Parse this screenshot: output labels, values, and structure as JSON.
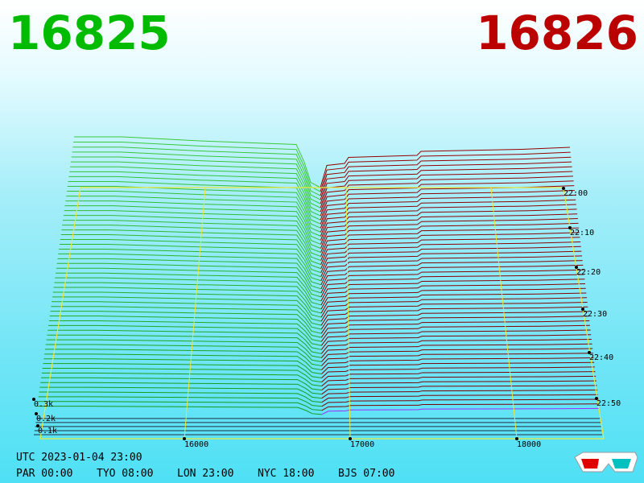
{
  "header": {
    "bid": "16825",
    "ask": "16826"
  },
  "axis": {
    "price_labels": [
      "16000",
      "17000",
      "18000"
    ],
    "time_labels": [
      "22:00",
      "22:10",
      "22:20",
      "22:30",
      "22:40",
      "22:50"
    ],
    "depth_labels": [
      "0.3k",
      "0.2k",
      "0.1k"
    ]
  },
  "footer": {
    "utc": "UTC 2023-01-04 23:00",
    "clocks": [
      "PAR 00:00",
      "TYO 08:00",
      "LON 23:00",
      "NYC 18:00",
      "BJS 07:00"
    ]
  }
}
